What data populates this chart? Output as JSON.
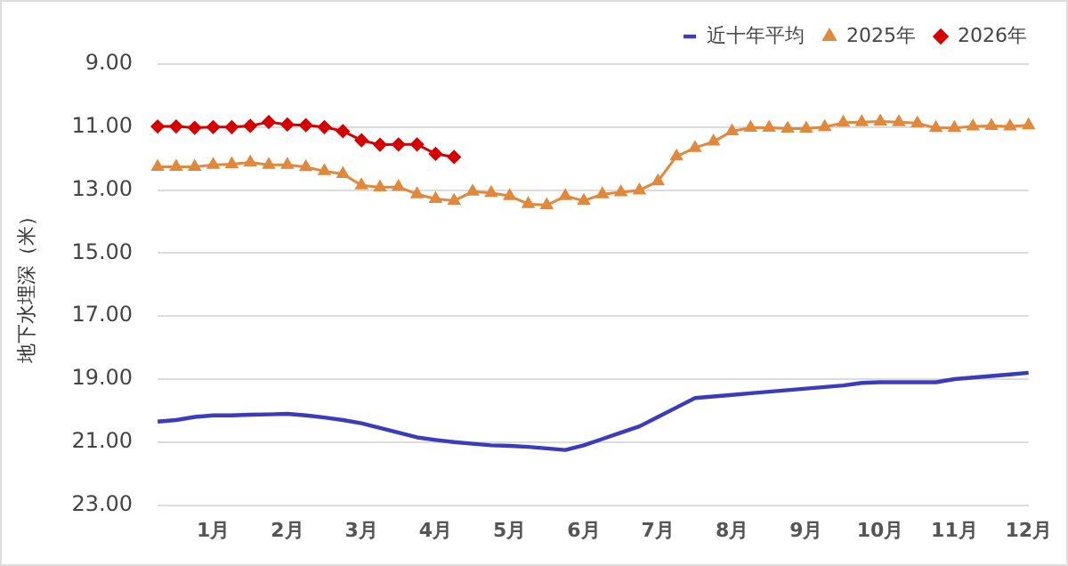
{
  "chart_data": {
    "type": "line",
    "ylabel": "地下水埋深（米）",
    "categories": [
      null,
      null,
      null,
      "1月",
      null,
      null,
      null,
      "2月",
      null,
      null,
      null,
      "3月",
      null,
      null,
      null,
      "4月",
      null,
      null,
      null,
      "5月",
      null,
      null,
      null,
      "6月",
      null,
      null,
      null,
      "7月",
      null,
      null,
      null,
      "8月",
      null,
      null,
      null,
      "9月",
      null,
      null,
      null,
      "10月",
      null,
      null,
      null,
      "11月",
      null,
      null,
      null,
      "12月"
    ],
    "series": [
      {
        "name": "近十年平均",
        "color": "#3b3bbd",
        "marker": "none",
        "values": [
          20.35,
          20.3,
          20.2,
          20.15,
          20.15,
          20.13,
          20.12,
          20.1,
          20.15,
          20.22,
          20.3,
          20.4,
          20.55,
          20.7,
          20.85,
          20.93,
          21.0,
          21.05,
          21.1,
          21.12,
          21.15,
          21.2,
          21.25,
          21.1,
          20.9,
          20.7,
          20.5,
          20.2,
          19.9,
          19.6,
          19.55,
          19.5,
          19.45,
          19.4,
          19.35,
          19.3,
          19.25,
          19.2,
          19.12,
          19.1,
          19.1,
          19.1,
          19.1,
          19.0,
          18.95,
          18.9,
          18.85,
          18.8
        ]
      },
      {
        "name": "2025年",
        "color": "#e0883c",
        "marker": "triangle",
        "values": [
          12.26,
          12.26,
          12.26,
          12.2,
          12.18,
          12.12,
          12.2,
          12.2,
          12.27,
          12.4,
          12.49,
          12.85,
          12.91,
          12.9,
          13.13,
          13.28,
          13.34,
          13.05,
          13.09,
          13.19,
          13.44,
          13.48,
          13.19,
          13.34,
          13.13,
          13.07,
          13.01,
          12.72,
          11.93,
          11.66,
          11.46,
          11.13,
          11.02,
          11.02,
          11.05,
          11.05,
          11.0,
          10.86,
          10.84,
          10.82,
          10.84,
          10.88,
          11.03,
          11.03,
          10.98,
          10.96,
          10.98,
          10.94
        ]
      },
      {
        "name": "2026年",
        "color": "#d40000",
        "marker": "diamond",
        "values": [
          10.98,
          10.98,
          11.02,
          11.0,
          11.0,
          10.96,
          10.84,
          10.92,
          10.94,
          11.0,
          11.13,
          11.42,
          11.56,
          11.55,
          11.55,
          11.85,
          11.95,
          null,
          null,
          null,
          null,
          null,
          null,
          null,
          null,
          null,
          null,
          null,
          null,
          null,
          null,
          null,
          null,
          null,
          null,
          null,
          null,
          null,
          null,
          null,
          null,
          null,
          null,
          null,
          null,
          null,
          null,
          null
        ]
      }
    ],
    "ylim": [
      23,
      9
    ],
    "yticks": [
      {
        "value": 9,
        "label": "9.00"
      },
      {
        "value": 11,
        "label": "11.00"
      },
      {
        "value": 13,
        "label": "13.00"
      },
      {
        "value": 15,
        "label": "15.00"
      },
      {
        "value": 17,
        "label": "17.00"
      },
      {
        "value": 19,
        "label": "19.00"
      },
      {
        "value": 21,
        "label": "21.00"
      },
      {
        "value": 23,
        "label": "23.00"
      }
    ],
    "grid": "y",
    "legend": "top right",
    "line_style": "solid"
  }
}
